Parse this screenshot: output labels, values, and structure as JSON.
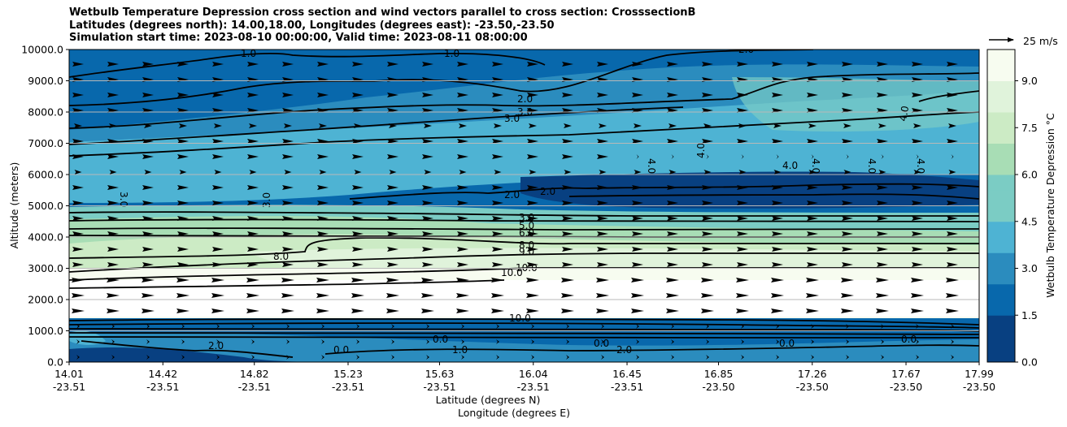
{
  "title_lines": [
    "Wetbulb Temperature Depression cross section and wind vectors parallel to cross section: CrosssectionB",
    "Latitudes (degrees north): 14.00,18.00, Longitudes (degrees east): -23.50,-23.50",
    "Simulation start time: 2023-08-10 00:00:00, Valid time: 2023-08-11 08:00:00"
  ],
  "chart_data": {
    "type": "heatmap",
    "ylabel": "Altitude (meters)",
    "xlabel_lines": [
      "Latitude (degrees N)",
      "Longitude (degrees E)"
    ],
    "yticks": [
      "0.0",
      "1000.0",
      "2000.0",
      "3000.0",
      "4000.0",
      "5000.0",
      "6000.0",
      "7000.0",
      "8000.0",
      "9000.0",
      "10000.0"
    ],
    "ylim": [
      0,
      10000
    ],
    "xticks": [
      {
        "lat": "14.01",
        "lon": "-23.51"
      },
      {
        "lat": "14.42",
        "lon": "-23.51"
      },
      {
        "lat": "14.82",
        "lon": "-23.51"
      },
      {
        "lat": "15.23",
        "lon": "-23.51"
      },
      {
        "lat": "15.63",
        "lon": "-23.51"
      },
      {
        "lat": "16.04",
        "lon": "-23.51"
      },
      {
        "lat": "16.45",
        "lon": "-23.51"
      },
      {
        "lat": "16.85",
        "lon": "-23.50"
      },
      {
        "lat": "17.26",
        "lon": "-23.50"
      },
      {
        "lat": "17.67",
        "lon": "-23.50"
      },
      {
        "lat": "17.99",
        "lon": "-23.50"
      }
    ],
    "xlim": [
      14.01,
      17.99
    ],
    "grid": "horizontal",
    "colorbar": {
      "label": "Wetbulb Temperature Depression °C",
      "ticks": [
        "0.0",
        "1.5",
        "3.0",
        "4.5",
        "6.0",
        "7.5",
        "9.0"
      ],
      "range": [
        0,
        10
      ],
      "colors": [
        "#084081",
        "#0868ac",
        "#2b8cbe",
        "#4eb3d3",
        "#7bccc4",
        "#a8ddb5",
        "#ccebc5",
        "#e0f3db",
        "#f7fcf0"
      ]
    },
    "quiver_key": "25 m/s",
    "contour_labels": [
      "1.0",
      "1.0",
      "2.0",
      "2.0",
      "3.0",
      "3.0",
      "4.0",
      "4.0",
      "4.0",
      "4.0",
      "4.0",
      "4.0",
      "4.0",
      "6.0",
      "6.0",
      "3.0",
      "3.0",
      "2.0",
      "2.0",
      "3.0",
      "5.0",
      "6.0",
      "8.0",
      "8.0",
      "9.0",
      "10.0",
      "10.0",
      "10.0",
      "0.0",
      "0.0",
      "0.0",
      "0.0",
      "1.0",
      "2.0",
      "2.0",
      "0.0"
    ]
  }
}
